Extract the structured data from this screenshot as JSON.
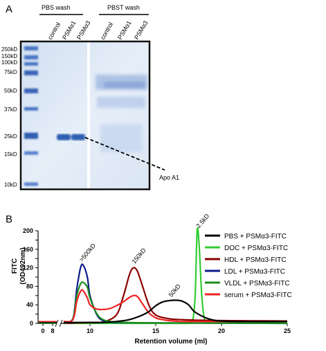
{
  "panel_a": {
    "panel_label": "A",
    "group_labels": [
      "PBS wash",
      "PBST wash"
    ],
    "lane_labels": [
      "control",
      "PSMα1",
      "PSMα3",
      "control",
      "PSMα1",
      "PSMα3"
    ],
    "marker_labels": [
      "250kD",
      "150kD",
      "100kD",
      "75kD",
      "50kD",
      "37kD",
      "25kD",
      "15kD",
      "10kD"
    ],
    "marker_values_kd": [
      250,
      150,
      100,
      75,
      50,
      37,
      25,
      15,
      10
    ],
    "annotation": "Apo A1",
    "colors": {
      "gel_background": "#dfe9f5",
      "band": "#2f5fb0",
      "frame": "#111111"
    }
  },
  "panel_b": {
    "panel_label": "B",
    "chart_data": {
      "type": "line",
      "ylabel": "FITC\n(OD492nm)",
      "xlabel": "Retention volume (ml)",
      "ylim": [
        0,
        200
      ],
      "yticks": [
        0,
        20,
        40,
        60,
        80,
        100,
        120,
        140,
        160,
        180,
        200
      ],
      "yticklabels": [
        "0",
        "",
        "40",
        "",
        "80",
        "",
        "120",
        "",
        "160",
        "",
        "200"
      ],
      "xlim": [
        8,
        25
      ],
      "xticks_left": [
        0,
        8
      ],
      "xticks": [
        10,
        15,
        20,
        25
      ],
      "axis_break": true,
      "legend_position": "right",
      "series": [
        {
          "name": "PBS + PSMα3-FITC",
          "color": "#000000",
          "x": [
            8,
            9,
            10,
            11,
            12,
            13,
            14,
            14.5,
            15,
            15.5,
            16,
            16.5,
            17,
            17.5,
            18,
            19,
            20,
            22,
            25
          ],
          "y": [
            2,
            2,
            2,
            2,
            4,
            8,
            18,
            26,
            38,
            46,
            49,
            50,
            48,
            40,
            24,
            10,
            5,
            4,
            4
          ]
        },
        {
          "name": "DOC + PSMα3-FITC",
          "color": "#33cc33",
          "x": [
            8,
            10,
            15,
            17.5,
            17.8,
            18,
            18.15,
            18.3,
            18.5,
            18.7,
            19,
            20,
            25
          ],
          "y": [
            0,
            0,
            0,
            0,
            5,
            60,
            200,
            170,
            60,
            10,
            2,
            1,
            1
          ]
        },
        {
          "name": "HDL + PSMα3-FITC",
          "color": "#8b0000",
          "x": [
            8,
            9,
            10,
            11,
            12,
            12.5,
            13,
            13.3,
            13.6,
            14,
            14.5,
            15,
            16,
            17,
            18,
            20,
            25
          ],
          "y": [
            0,
            1,
            2,
            3,
            18,
            55,
            105,
            120,
            113,
            80,
            38,
            18,
            10,
            8,
            7,
            6,
            5
          ]
        },
        {
          "name": "LDL + PSMα3-FITC",
          "color": "#0b1a8a",
          "x": [
            8,
            8.7,
            9,
            9.3,
            9.5,
            9.8,
            10,
            10.5,
            11,
            12,
            15,
            25
          ],
          "y": [
            0,
            10,
            75,
            122,
            125,
            100,
            60,
            20,
            6,
            2,
            1,
            0
          ]
        },
        {
          "name": "VLDL + PSMα3-FITC",
          "color": "#1e8c1e",
          "x": [
            8,
            8.7,
            9,
            9.3,
            9.5,
            9.8,
            10,
            10.5,
            11,
            12,
            15,
            25
          ],
          "y": [
            0,
            10,
            60,
            86,
            88,
            78,
            55,
            22,
            8,
            3,
            1,
            0
          ]
        },
        {
          "name": "serum + PSMα3-FITC",
          "color": "#ee2222",
          "x": [
            8,
            8.7,
            9,
            9.3,
            9.5,
            9.8,
            10,
            10.5,
            11,
            11.5,
            12,
            12.5,
            13,
            13.3,
            13.6,
            14,
            14.5,
            15,
            15.5,
            16,
            17,
            18,
            20,
            22,
            25
          ],
          "y": [
            4,
            8,
            48,
            70,
            70,
            55,
            40,
            31,
            30,
            32,
            38,
            46,
            56,
            60,
            58,
            42,
            22,
            12,
            8,
            6,
            4,
            4,
            4,
            4,
            4
          ]
        }
      ],
      "annotations": [
        {
          "text": ">500kD",
          "x": 9.4,
          "y": 132
        },
        {
          "text": "150kD",
          "x": 13.4,
          "y": 128
        },
        {
          "text": "50kD",
          "x": 16.2,
          "y": 56
        },
        {
          "text": "2.5kD",
          "x": 18.3,
          "y": 205
        }
      ]
    }
  }
}
